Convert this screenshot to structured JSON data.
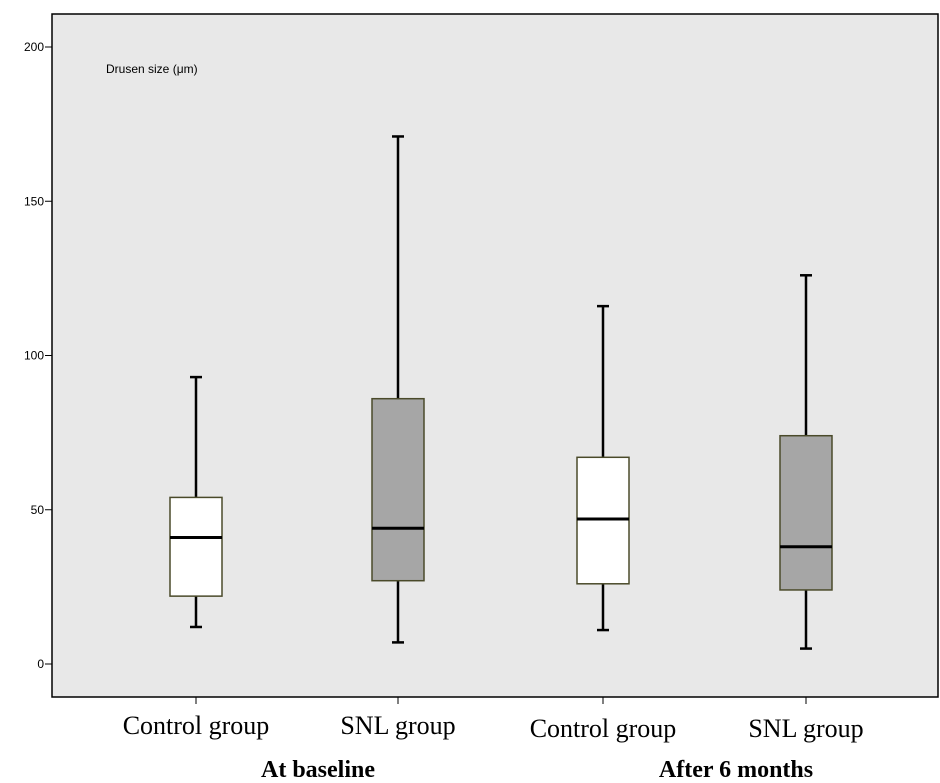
{
  "chart_data": {
    "type": "box",
    "annotation": "Drusen size (μm)",
    "ylim": [
      -10,
      205
    ],
    "yticks": [
      0,
      50,
      100,
      150,
      200
    ],
    "ytick_labels": [
      "0",
      "50",
      "100",
      "150",
      "200"
    ],
    "categories": [
      "Control group",
      "SNL group",
      "Control group",
      "SNL group"
    ],
    "groups": [
      {
        "label": "At baseline"
      },
      {
        "label": "After 6 months"
      }
    ],
    "boxes": [
      {
        "category": "Control group",
        "group": "At baseline",
        "min": 12,
        "q1": 22,
        "median": 41,
        "q3": 54,
        "max": 93,
        "fill": "#ffffff"
      },
      {
        "category": "SNL group",
        "group": "At baseline",
        "min": 7,
        "q1": 27,
        "median": 44,
        "q3": 86,
        "max": 171,
        "fill": "#a6a6a6"
      },
      {
        "category": "Control group",
        "group": "After 6 months",
        "min": 11,
        "q1": 26,
        "median": 47,
        "q3": 67,
        "max": 116,
        "fill": "#ffffff"
      },
      {
        "category": "SNL group",
        "group": "After 6 months",
        "min": 5,
        "q1": 24,
        "median": 38,
        "q3": 74,
        "max": 126,
        "fill": "#a6a6a6"
      }
    ],
    "grid": false,
    "colors": {
      "plot_background": "#e8e8e8",
      "control_fill": "#ffffff",
      "snl_fill": "#a6a6a6",
      "box_edge": "#4a4a2a"
    }
  }
}
